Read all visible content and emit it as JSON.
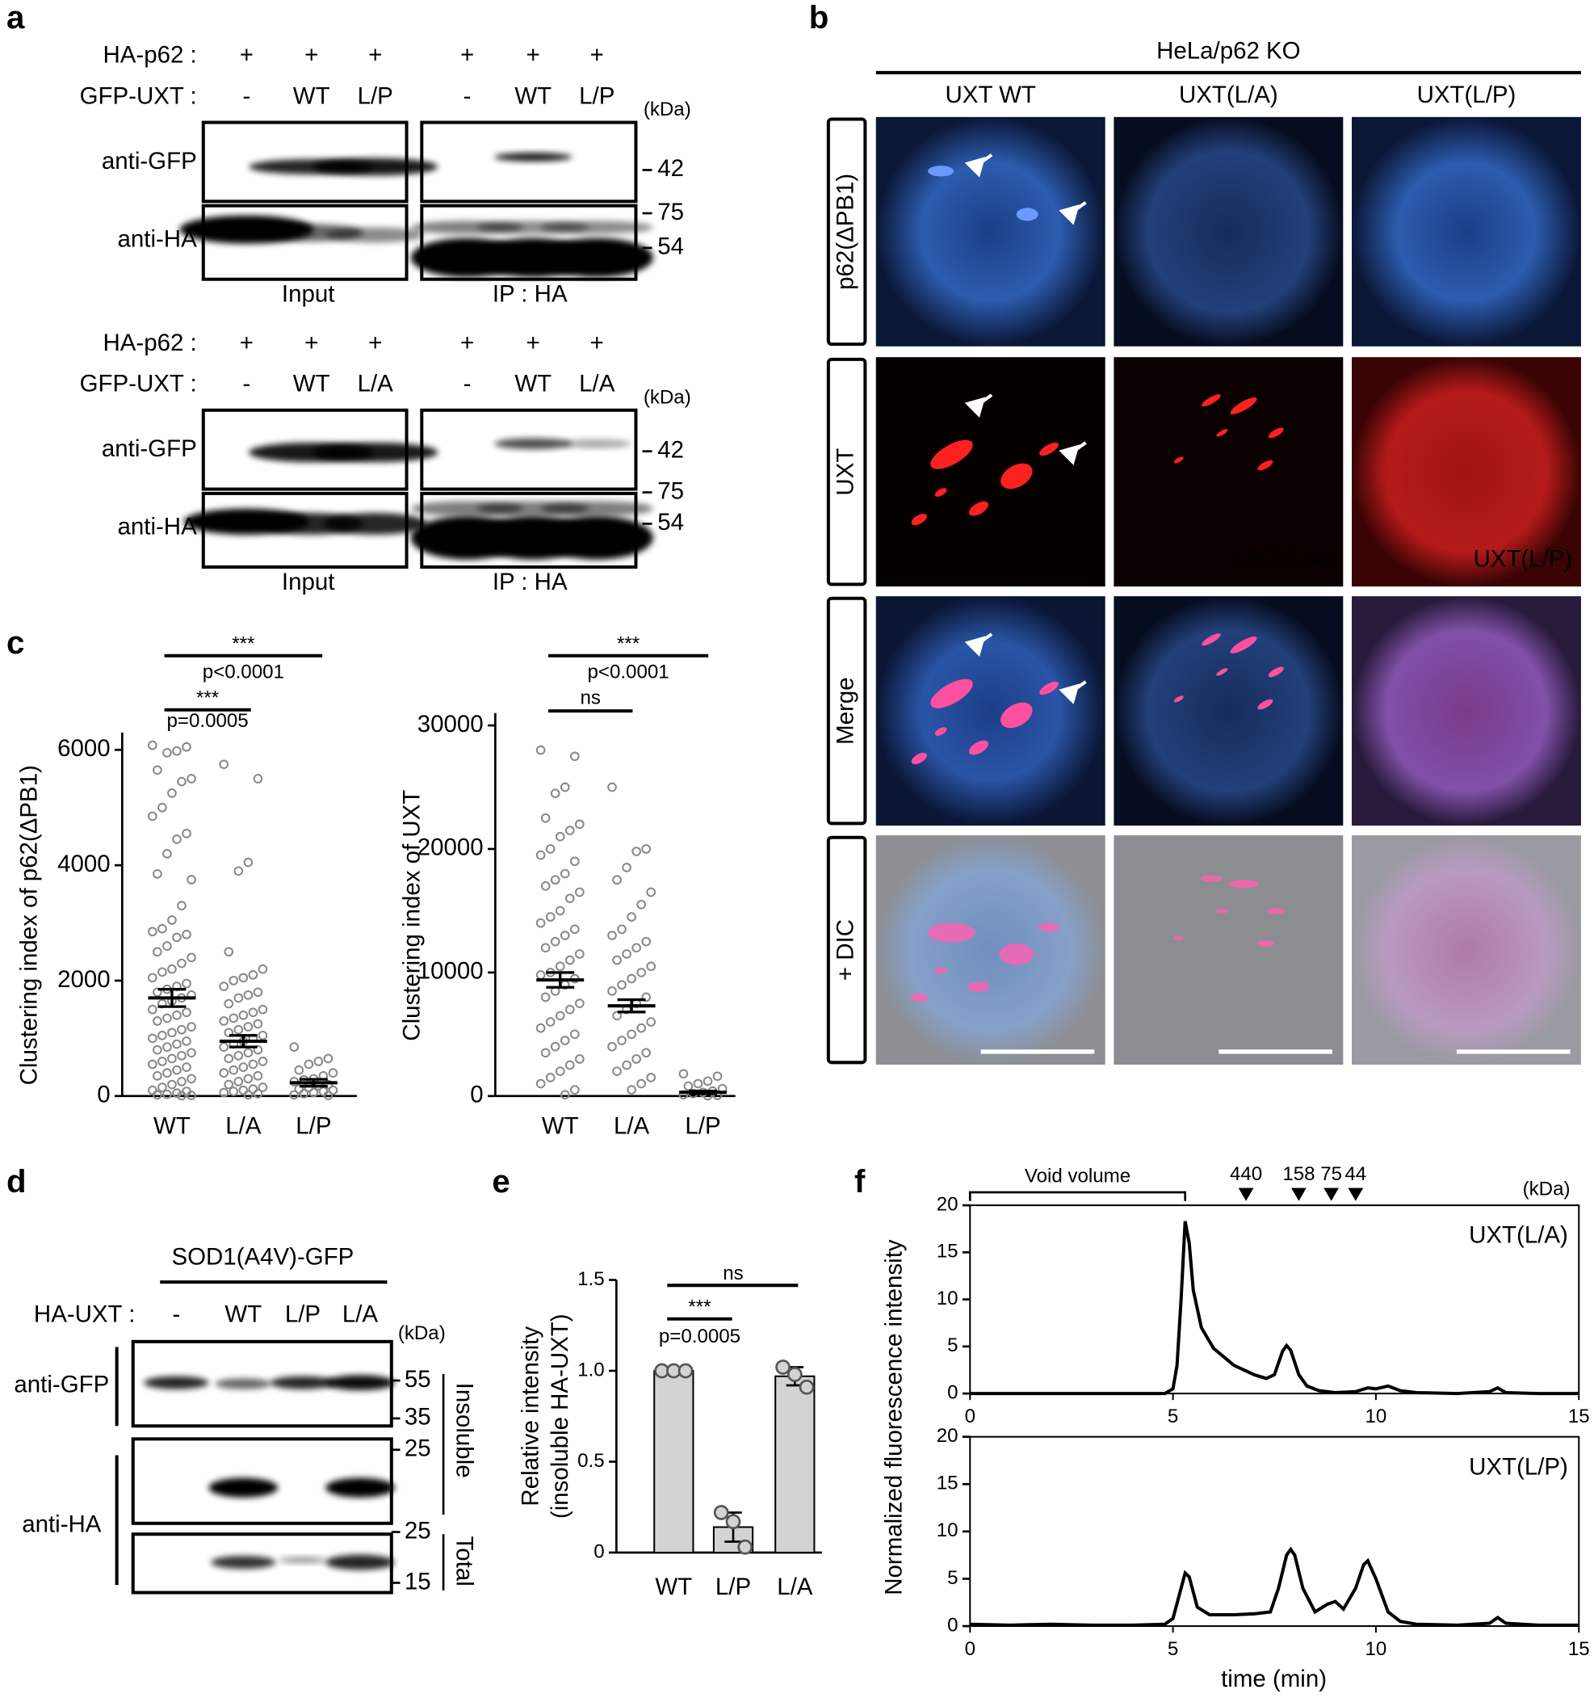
{
  "figure": {
    "panel_labels": [
      "a",
      "b",
      "c",
      "d",
      "e",
      "f"
    ],
    "a": [
      {
        "rows": [
          {
            "label": "HA-p62 :",
            "lanes": [
              "+",
              "+",
              "+",
              "+",
              "+",
              "+"
            ]
          },
          {
            "label": "GFP-UXT :",
            "lanes": [
              "-",
              "WT",
              "L/P",
              "-",
              "WT",
              "L/P"
            ]
          }
        ],
        "kda": "(kDa)",
        "antibodies": [
          "anti-GFP",
          "anti-HA"
        ],
        "markers": [
          "42",
          "75",
          "54"
        ],
        "groups": [
          "Input",
          "IP : HA"
        ]
      },
      {
        "rows": [
          {
            "label": "HA-p62 :",
            "lanes": [
              "+",
              "+",
              "+",
              "+",
              "+",
              "+"
            ]
          },
          {
            "label": "GFP-UXT :",
            "lanes": [
              "-",
              "WT",
              "L/A",
              "-",
              "WT",
              "L/A"
            ]
          }
        ],
        "kda": "(kDa)",
        "antibodies": [
          "anti-GFP",
          "anti-HA"
        ],
        "markers": [
          "42",
          "75",
          "54"
        ],
        "groups": [
          "Input",
          "IP : HA"
        ]
      }
    ],
    "b": {
      "title": "HeLa/p62 KO",
      "columns": [
        "UXT WT",
        "UXT(L/A)",
        "UXT(L/P)"
      ],
      "rows": [
        "p62(ΔPB1)",
        "UXT",
        "Merge",
        "+ DIC"
      ]
    },
    "d": {
      "title": "SOD1(A4V)-GFP",
      "row": {
        "label": "HA-UXT :",
        "lanes": [
          "-",
          "WT",
          "L/P",
          "L/A"
        ]
      },
      "kda": "(kDa)",
      "antibodies": [
        "anti-GFP",
        "anti-HA"
      ],
      "markers": [
        "55",
        "35",
        "25",
        "25",
        "15"
      ],
      "fractions": [
        "Insoluble",
        "Total"
      ]
    }
  },
  "chart_data": [
    {
      "type": "dotplot",
      "ylabel": "Clustering index of p62(ΔPB1)",
      "categories": [
        "WT",
        "L/A",
        "L/P"
      ],
      "color": "#888888",
      "points": [
        [
          6080,
          6050,
          5980,
          5950,
          5650,
          5500,
          5450,
          5250,
          5000,
          4850,
          4550,
          4450,
          4200,
          3850,
          3750,
          3300,
          3050,
          2900,
          2850,
          2800,
          2750,
          2600,
          2500,
          2400,
          2300,
          2200,
          2150,
          2050,
          1950,
          1900,
          1850,
          1800,
          1750,
          1700,
          1650,
          1600,
          1500,
          1450,
          1400,
          1350,
          1300,
          1200,
          1150,
          1100,
          1050,
          1000,
          950,
          900,
          850,
          800,
          750,
          700,
          650,
          600,
          550,
          500,
          450,
          400,
          350,
          300,
          250,
          200,
          150,
          100,
          80,
          50,
          30,
          20,
          10,
          5
        ],
        [
          5750,
          5500,
          4050,
          3900,
          2500,
          2200,
          2100,
          2050,
          2000,
          1900,
          1800,
          1750,
          1700,
          1600,
          1500,
          1450,
          1400,
          1350,
          1300,
          1250,
          1200,
          1150,
          1100,
          1050,
          1000,
          950,
          900,
          850,
          800,
          750,
          700,
          650,
          600,
          550,
          500,
          450,
          400,
          350,
          300,
          250,
          200,
          150,
          120,
          100,
          80,
          60,
          40,
          20
        ],
        [
          850,
          650,
          600,
          550,
          450,
          400,
          350,
          300,
          280,
          250,
          200,
          180,
          150,
          120,
          100,
          80,
          60,
          40,
          20,
          10
        ]
      ],
      "means": [
        1700,
        950,
        230
      ],
      "sems": [
        150,
        100,
        60
      ],
      "ylim": [
        0,
        6300
      ],
      "yticks": [
        0,
        2000,
        4000,
        6000
      ],
      "annotations": [
        "***",
        "p<0.0001",
        "***",
        "p=0.0005"
      ]
    },
    {
      "type": "dotplot",
      "ylabel": "Clustering index of UXT",
      "categories": [
        "WT",
        "L/A",
        "L/P"
      ],
      "color": "#888888",
      "points": [
        [
          28000,
          27500,
          25000,
          24500,
          22500,
          22000,
          21500,
          21000,
          20000,
          19500,
          19000,
          18000,
          17500,
          17000,
          16500,
          16000,
          15000,
          14500,
          14000,
          13500,
          13000,
          12500,
          12000,
          11500,
          11000,
          10500,
          10000,
          9800,
          9500,
          9000,
          8500,
          8000,
          7500,
          7000,
          6500,
          6000,
          5500,
          5000,
          4500,
          4000,
          3500,
          3000,
          2500,
          2000,
          1500,
          1000,
          500,
          100
        ],
        [
          25000,
          20000,
          19800,
          18500,
          17500,
          16500,
          15500,
          14500,
          13500,
          13000,
          12500,
          12000,
          11500,
          11000,
          10500,
          10000,
          9500,
          9000,
          8500,
          8000,
          7500,
          7000,
          6500,
          6000,
          5500,
          5000,
          4500,
          4000,
          3500,
          3000,
          2500,
          2000,
          1500,
          1000,
          500
        ],
        [
          1800,
          1600,
          1200,
          1000,
          800,
          600,
          400,
          300,
          200,
          100,
          50,
          20
        ]
      ],
      "means": [
        9400,
        7300,
        300
      ],
      "sems": [
        600,
        500,
        100
      ],
      "ylim": [
        0,
        31000
      ],
      "yticks": [
        0,
        10000,
        20000,
        30000
      ],
      "annotations": [
        "***",
        "p<0.0001",
        "ns"
      ]
    },
    {
      "type": "bar",
      "ylabel": [
        "Relative intensity",
        "(insoluble HA-UXT)"
      ],
      "categories": [
        "WT",
        "L/P",
        "L/A"
      ],
      "values": [
        1.0,
        0.14,
        0.97
      ],
      "errors": [
        0,
        0.08,
        0.05
      ],
      "points": [
        [
          1.0,
          1.0,
          1.0
        ],
        [
          0.22,
          0.17,
          0.03
        ],
        [
          1.02,
          0.98,
          0.91
        ]
      ],
      "color": "#d3d3d3",
      "ylim": [
        0,
        1.5
      ],
      "yticks": [
        0,
        0.5,
        {
          "value": 1,
          "label": "1.0"
        },
        1.5
      ],
      "annotations": [
        "ns",
        "***",
        "p=0.0005"
      ]
    },
    {
      "type": "line",
      "title": "UXT(L/A)",
      "ylabel": "Normalized fluorescence intensity",
      "color": "#000000",
      "void": "Void volume",
      "void_end": 5.3,
      "unit": "(kDa)",
      "markers": [
        {
          "label": "440",
          "x": 6.8
        },
        {
          "label": "158",
          "x": 8.1
        },
        {
          "label": "75",
          "x": 8.9
        },
        {
          "label": "44",
          "x": 9.5
        }
      ],
      "x": [
        0,
        1,
        2,
        3,
        4,
        4.8,
        5.0,
        5.1,
        5.2,
        5.3,
        5.4,
        5.5,
        5.7,
        6.0,
        6.5,
        7.0,
        7.3,
        7.5,
        7.7,
        7.8,
        7.9,
        8.1,
        8.3,
        8.6,
        9,
        9.5,
        9.8,
        10,
        10.3,
        10.6,
        11,
        12,
        12.8,
        13,
        13.2,
        14,
        15
      ],
      "values": [
        0,
        0,
        0,
        0,
        0,
        0,
        0.5,
        3,
        10,
        18.3,
        16,
        11,
        7,
        4.8,
        3,
        2,
        1.6,
        2,
        4.5,
        5.1,
        4.6,
        2,
        0.8,
        0.3,
        0.1,
        0.2,
        0.6,
        0.5,
        0.8,
        0.3,
        0.1,
        0,
        0.2,
        0.6,
        0.1,
        0,
        0
      ],
      "xlim": [
        0,
        15
      ],
      "xticks": [
        0,
        5,
        10,
        15
      ],
      "ylim": [
        0,
        20
      ],
      "yticks": [
        0,
        5,
        10,
        15,
        20
      ]
    },
    {
      "type": "line",
      "title": "UXT(L/P)",
      "xlabel": "time (min)",
      "color": "#000000",
      "x": [
        0,
        1,
        2,
        3,
        4,
        4.8,
        5.0,
        5.2,
        5.3,
        5.4,
        5.6,
        5.9,
        6.5,
        7,
        7.4,
        7.6,
        7.8,
        7.9,
        8.0,
        8.2,
        8.5,
        8.8,
        9.0,
        9.2,
        9.5,
        9.7,
        9.8,
        10,
        10.3,
        10.6,
        11,
        12,
        12.8,
        13,
        13.2,
        14,
        15
      ],
      "values": [
        0.2,
        0.1,
        0.2,
        0.1,
        0.1,
        0.2,
        0.8,
        4,
        5.6,
        5.2,
        2,
        1.2,
        1.2,
        1.3,
        1.5,
        4,
        7.5,
        8.1,
        7.5,
        4,
        1.5,
        2.3,
        2.6,
        1.8,
        4,
        6.5,
        6.9,
        5,
        1.5,
        0.5,
        0.2,
        0.1,
        0.3,
        0.9,
        0.3,
        0.1,
        0.1
      ],
      "xlim": [
        0,
        15
      ],
      "xticks": [
        0,
        5,
        10,
        15
      ],
      "ylim": [
        0,
        20
      ],
      "yticks": [
        0,
        5,
        10,
        15,
        20
      ]
    }
  ]
}
